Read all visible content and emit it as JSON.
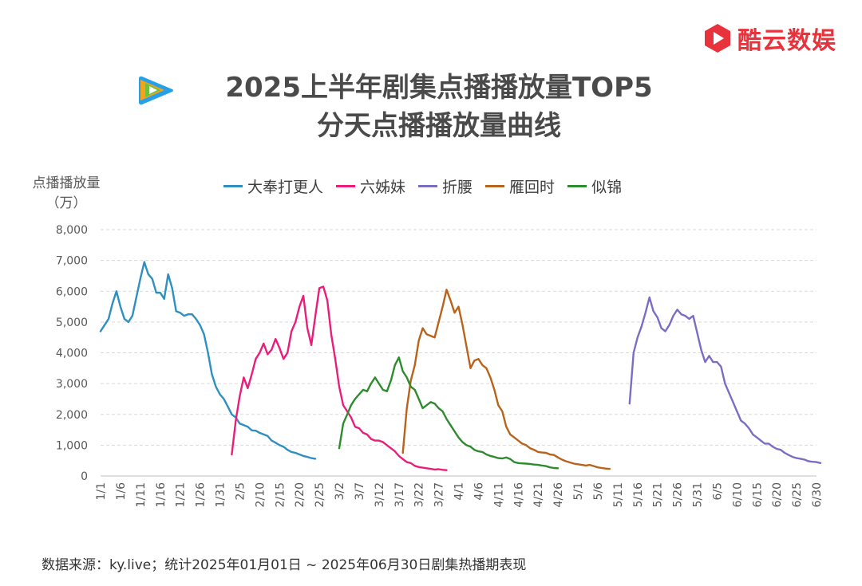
{
  "brand": {
    "name": "酷云数娱",
    "color": "#e8323c",
    "logo_icon": "play-hexagon-icon",
    "platform_icon": "tencent-video-icon"
  },
  "title": {
    "line1": "2025上半年剧集点播播放量TOP5",
    "line2": "分天点播播放量曲线"
  },
  "ylabel": {
    "line1": "点播播放量",
    "line2": "（万）"
  },
  "source": "数据来源：ky.live；统计2025年01月01日 ~ 2025年06月30日剧集热播期表现",
  "chart_data": {
    "type": "line",
    "ylim": [
      0,
      8000
    ],
    "yticks": [
      "0",
      "1,000",
      "2,000",
      "3,000",
      "4,000",
      "5,000",
      "6,000",
      "7,000",
      "8,000"
    ],
    "xlim": [
      1,
      181
    ],
    "xticks": [
      {
        "day": 1,
        "label": "1/1"
      },
      {
        "day": 6,
        "label": "1/6"
      },
      {
        "day": 11,
        "label": "1/11"
      },
      {
        "day": 16,
        "label": "1/16"
      },
      {
        "day": 21,
        "label": "1/21"
      },
      {
        "day": 26,
        "label": "1/26"
      },
      {
        "day": 31,
        "label": "1/31"
      },
      {
        "day": 36,
        "label": "2/5"
      },
      {
        "day": 41,
        "label": "2/10"
      },
      {
        "day": 46,
        "label": "2/15"
      },
      {
        "day": 51,
        "label": "2/20"
      },
      {
        "day": 56,
        "label": "2/25"
      },
      {
        "day": 61,
        "label": "3/2"
      },
      {
        "day": 66,
        "label": "3/7"
      },
      {
        "day": 71,
        "label": "3/12"
      },
      {
        "day": 76,
        "label": "3/17"
      },
      {
        "day": 81,
        "label": "3/22"
      },
      {
        "day": 86,
        "label": "3/27"
      },
      {
        "day": 91,
        "label": "4/1"
      },
      {
        "day": 96,
        "label": "4/6"
      },
      {
        "day": 101,
        "label": "4/11"
      },
      {
        "day": 106,
        "label": "4/16"
      },
      {
        "day": 111,
        "label": "4/21"
      },
      {
        "day": 116,
        "label": "4/26"
      },
      {
        "day": 121,
        "label": "5/1"
      },
      {
        "day": 126,
        "label": "5/6"
      },
      {
        "day": 131,
        "label": "5/11"
      },
      {
        "day": 136,
        "label": "5/16"
      },
      {
        "day": 141,
        "label": "5/21"
      },
      {
        "day": 146,
        "label": "5/26"
      },
      {
        "day": 151,
        "label": "5/31"
      },
      {
        "day": 156,
        "label": "6/5"
      },
      {
        "day": 161,
        "label": "6/10"
      },
      {
        "day": 166,
        "label": "6/15"
      },
      {
        "day": 171,
        "label": "6/20"
      },
      {
        "day": 176,
        "label": "6/25"
      },
      {
        "day": 181,
        "label": "6/30"
      }
    ],
    "legend_position": "top",
    "grid": "horizontal dashed",
    "series": [
      {
        "name": "大奉打更人",
        "color": "#2e8fc0",
        "start_day": 1,
        "values": [
          4700,
          4900,
          5100,
          5600,
          6000,
          5500,
          5100,
          5000,
          5200,
          5800,
          6400,
          6950,
          6550,
          6400,
          5950,
          5950,
          5750,
          6550,
          6100,
          5350,
          5300,
          5200,
          5250,
          5250,
          5100,
          4900,
          4600,
          4000,
          3300,
          2900,
          2650,
          2500,
          2250,
          2000,
          1900,
          1700,
          1650,
          1600,
          1480,
          1470,
          1400,
          1350,
          1300,
          1150,
          1080,
          1000,
          950,
          850,
          780,
          750,
          700,
          650,
          620,
          580,
          560
        ]
      },
      {
        "name": "六姊妹",
        "color": "#e91e7a",
        "start_day": 34,
        "values": [
          700,
          1800,
          2600,
          3200,
          2850,
          3300,
          3800,
          4000,
          4300,
          3950,
          4100,
          4450,
          4150,
          3800,
          4000,
          4700,
          5000,
          5500,
          5850,
          4800,
          4250,
          5200,
          6100,
          6150,
          5700,
          4600,
          3800,
          2900,
          2300,
          2100,
          1900,
          1600,
          1550,
          1400,
          1350,
          1200,
          1150,
          1150,
          1100,
          1000,
          900,
          800,
          650,
          550,
          450,
          420,
          330,
          290,
          270,
          250,
          230,
          210,
          220,
          200,
          190
        ]
      },
      {
        "name": "折腰",
        "color": "#7b6cc4",
        "start_day": 134,
        "values": [
          2350,
          4000,
          4500,
          4850,
          5300,
          5800,
          5350,
          5150,
          4800,
          4700,
          4900,
          5200,
          5400,
          5250,
          5200,
          5100,
          5200,
          4650,
          4100,
          3700,
          3900,
          3700,
          3700,
          3550,
          3000,
          2700,
          2400,
          2100,
          1800,
          1700,
          1550,
          1350,
          1250,
          1150,
          1050,
          1050,
          950,
          880,
          850,
          750,
          680,
          620,
          580,
          560,
          530,
          480,
          460,
          450,
          420
        ]
      },
      {
        "name": "雁回时",
        "color": "#b8631c",
        "start_day": 77,
        "values": [
          750,
          2200,
          3100,
          3600,
          4400,
          4800,
          4600,
          4550,
          4500,
          5000,
          5500,
          6050,
          5700,
          5300,
          5500,
          4900,
          4200,
          3500,
          3750,
          3800,
          3600,
          3500,
          3200,
          2800,
          2300,
          2100,
          1600,
          1350,
          1250,
          1150,
          1050,
          1000,
          900,
          850,
          780,
          760,
          750,
          700,
          680,
          600,
          530,
          480,
          440,
          400,
          380,
          360,
          340,
          360,
          320,
          280,
          260,
          240,
          230
        ]
      },
      {
        "name": "似锦",
        "color": "#2e8b2e",
        "start_day": 61,
        "values": [
          900,
          1700,
          2000,
          2300,
          2500,
          2650,
          2800,
          2750,
          3000,
          3200,
          3000,
          2800,
          2750,
          3100,
          3600,
          3850,
          3400,
          3200,
          2900,
          2800,
          2500,
          2200,
          2300,
          2400,
          2350,
          2200,
          2100,
          1850,
          1650,
          1450,
          1250,
          1100,
          1000,
          950,
          850,
          800,
          780,
          700,
          650,
          620,
          580,
          570,
          600,
          550,
          450,
          420,
          410,
          400,
          390,
          370,
          360,
          340,
          320,
          280,
          260,
          250
        ]
      }
    ]
  }
}
